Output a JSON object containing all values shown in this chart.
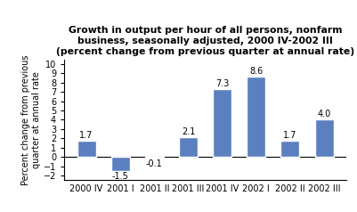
{
  "categories": [
    "2000 IV",
    "2001 I",
    "2001 II",
    "2001 III",
    "2001 IV",
    "2002 I",
    "2002 II",
    "2002 III"
  ],
  "values": [
    1.7,
    -1.5,
    -0.1,
    2.1,
    7.3,
    8.6,
    1.7,
    4.0
  ],
  "bar_color": "#5B7FBF",
  "title_line1": "Growth in output per hour of all persons, nonfarm",
  "title_line2": "business, seasonally adjusted, 2000 IV-2002 III",
  "title_line3": "(percent change from previous quarter at annual rate)",
  "ylabel": "Percent change from previous\nquarter at annual rate",
  "ylim": [
    -2.5,
    10.5
  ],
  "yticks": [
    -2,
    -1,
    0,
    1,
    2,
    3,
    4,
    5,
    6,
    7,
    8,
    9,
    10
  ],
  "label_fontsize": 7,
  "title_fontsize": 7.8,
  "ylabel_fontsize": 7,
  "tick_fontsize": 7
}
